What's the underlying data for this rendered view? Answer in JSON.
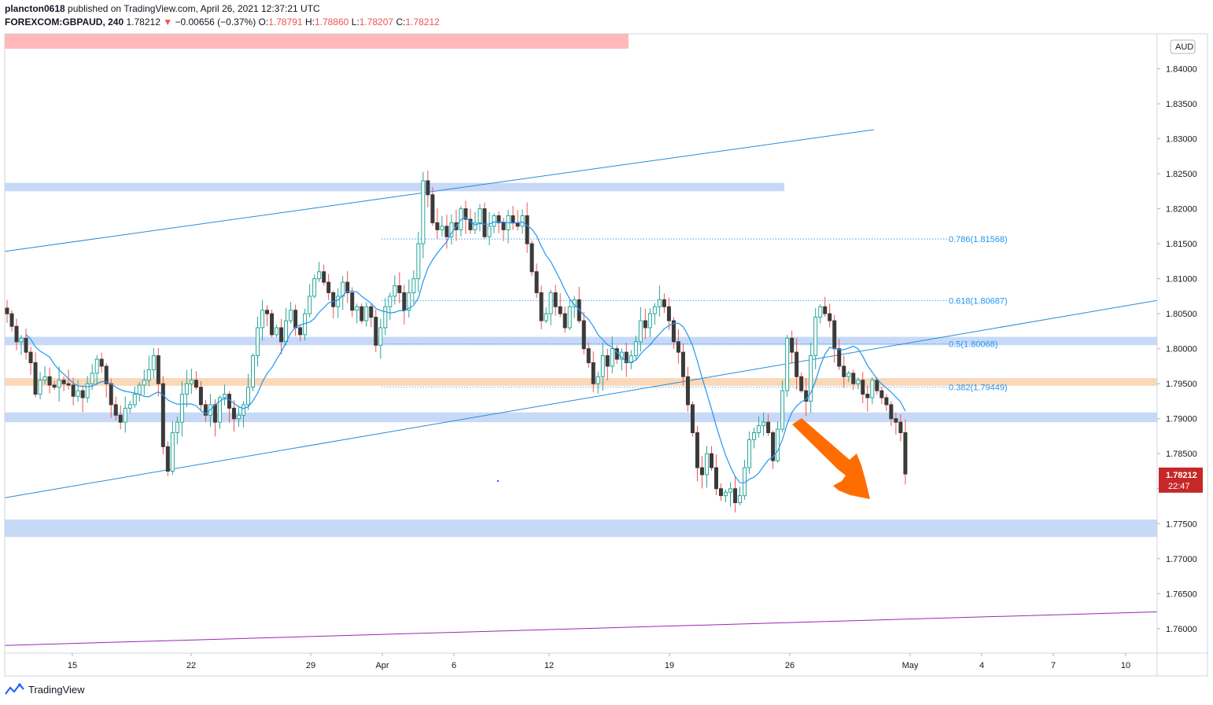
{
  "header": {
    "author": "plancton0618",
    "published": "published on TradingView.com, April 26, 2021 12:37:21 UTC",
    "symbol": "FOREXCOM:GBPAUD, 240",
    "last": "1.78212",
    "change": "−0.00656 (−0.37%)",
    "o_label": "O:",
    "o_value": "1.78791",
    "h_label": "H:",
    "h_value": "1.78860",
    "l_label": "L:",
    "l_value": "1.78207",
    "c_label": "C:",
    "c_value": "1.78212"
  },
  "footer": {
    "brand": "TradingView"
  },
  "colors": {
    "up": "#26a69a",
    "down": "#ef5350",
    "candle": "#3a3a3a",
    "ma": "#2196f3",
    "trend": "#2a8bd6",
    "purple": "#9c27b0",
    "zone": "#c7d9f7",
    "orange_zone": "#fad8b8",
    "red_zone": "#ffb9b9",
    "arrow": "#ff6d00"
  },
  "chart_data": {
    "type": "candlestick",
    "currency": "AUD",
    "ylim": [
      1.7565,
      1.845
    ],
    "y_ticks": [
      "1.84000",
      "1.83500",
      "1.83000",
      "1.82500",
      "1.82000",
      "1.81500",
      "1.81000",
      "1.80500",
      "1.80000",
      "1.79500",
      "1.79000",
      "1.78500",
      "1.78000",
      "1.77500",
      "1.77000",
      "1.76500",
      "1.76000"
    ],
    "x_ticks": [
      "15",
      "22",
      "29",
      "Apr",
      "6",
      "12",
      "19",
      "26",
      "May",
      "4",
      "7",
      "10"
    ],
    "last_price": "1.78212",
    "countdown": "22:47",
    "fib_levels": [
      {
        "label": "0.786(1.81568)",
        "value": 1.81568
      },
      {
        "label": "0.618(1.80687)",
        "value": 1.80687
      },
      {
        "label": "0.5(1.80068)",
        "value": 1.80068
      },
      {
        "label": "0.382(1.79449)",
        "value": 1.79449
      }
    ],
    "zones": [
      {
        "from": 1.8225,
        "to": 1.8237
      },
      {
        "from": 1.8005,
        "to": 1.8017
      },
      {
        "from": 1.7947,
        "to": 1.7958
      },
      {
        "from": 1.7895,
        "to": 1.7909
      },
      {
        "from": 1.7731,
        "to": 1.7756
      }
    ],
    "closes": [
      1.805,
      1.8032,
      1.801,
      1.8015,
      1.7995,
      1.798,
      1.7935,
      1.7955,
      1.796,
      1.7948,
      1.7945,
      1.7955,
      1.795,
      1.7948,
      1.7932,
      1.794,
      1.793,
      1.795,
      1.7965,
      1.7985,
      1.7975,
      1.795,
      1.792,
      1.7905,
      1.7895,
      1.7915,
      1.792,
      1.7935,
      1.7948,
      1.7955,
      1.797,
      1.799,
      1.795,
      1.786,
      1.7825,
      1.788,
      1.7895,
      1.7935,
      1.795,
      1.7955,
      1.7945,
      1.792,
      1.7905,
      1.792,
      1.7895,
      1.793,
      1.7935,
      1.7915,
      1.79,
      1.7905,
      1.792,
      1.7945,
      1.799,
      1.803,
      1.8055,
      1.805,
      1.802,
      1.803,
      1.801,
      1.804,
      1.8055,
      1.803,
      1.802,
      1.805,
      1.8075,
      1.81,
      1.811,
      1.8095,
      1.808,
      1.806,
      1.8075,
      1.8095,
      1.808,
      1.8055,
      1.806,
      1.804,
      1.806,
      1.8045,
      1.8005,
      1.803,
      1.806,
      1.8075,
      1.809,
      1.808,
      1.8055,
      1.808,
      1.81,
      1.815,
      1.824,
      1.822,
      1.818,
      1.817,
      1.8175,
      1.816,
      1.818,
      1.817,
      1.82,
      1.8185,
      1.817,
      1.818,
      1.82,
      1.816,
      1.8175,
      1.819,
      1.818,
      1.817,
      1.819,
      1.818,
      1.8175,
      1.819,
      1.815,
      1.811,
      1.808,
      1.804,
      1.805,
      1.808,
      1.806,
      1.805,
      1.803,
      1.806,
      1.807,
      1.804,
      1.8,
      1.798,
      1.795,
      1.796,
      1.799,
      1.7975,
      1.8,
      1.7985,
      1.7995,
      1.798,
      1.799,
      1.801,
      1.804,
      1.803,
      1.805,
      1.806,
      1.807,
      1.806,
      1.804,
      1.801,
      1.7995,
      1.796,
      1.792,
      1.788,
      1.783,
      1.782,
      1.785,
      1.783,
      1.78,
      1.779,
      1.7795,
      1.78,
      1.778,
      1.779,
      1.783,
      1.787,
      1.788,
      1.789,
      1.7895,
      1.788,
      1.784,
      1.7885,
      1.794,
      1.8015,
      1.7995,
      1.796,
      1.794,
      1.7925,
      1.799,
      1.8045,
      1.806,
      1.805,
      1.804,
      1.8,
      1.7975,
      1.796,
      1.7965,
      1.795,
      1.7955,
      1.7935,
      1.793,
      1.7955,
      1.794,
      1.793,
      1.792,
      1.79,
      1.7895,
      1.788,
      1.7821
    ],
    "ma_start_index": 4
  }
}
